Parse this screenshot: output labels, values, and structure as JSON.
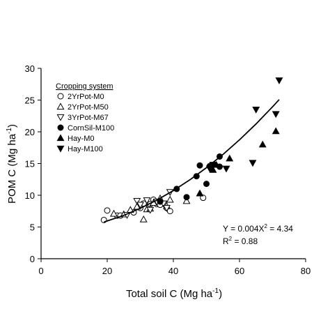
{
  "chart_data": {
    "type": "scatter",
    "title": "",
    "xlabel": "Total soil C (Mg ha",
    "xlabel_sup": "-1",
    "xlabel_close": ")",
    "ylabel": "POM C (Mg ha",
    "ylabel_sup": "-1",
    "ylabel_close": ")",
    "xlim": [
      0,
      80
    ],
    "ylim": [
      0,
      30
    ],
    "xticks": [
      0,
      20,
      40,
      60,
      80
    ],
    "yticks": [
      0,
      5,
      10,
      15,
      20,
      25,
      30
    ],
    "grid": false,
    "legend": {
      "title": "Cropping system",
      "placement": "top-left"
    },
    "series": [
      {
        "name": "2YrPot-M0",
        "marker": "circle-open",
        "points": [
          [
            19,
            6.1
          ],
          [
            20,
            7.6
          ],
          [
            23,
            6.8
          ],
          [
            24,
            6.8
          ],
          [
            28,
            7.3
          ],
          [
            30,
            8.0
          ],
          [
            31,
            8.7
          ],
          [
            33,
            8.6
          ],
          [
            34,
            9.3
          ],
          [
            35,
            8.6
          ],
          [
            36,
            8.5
          ],
          [
            38,
            8.0
          ],
          [
            39,
            7.5
          ],
          [
            49,
            9.6
          ]
        ]
      },
      {
        "name": "2YrPot-M50",
        "marker": "triangle-up-open",
        "points": [
          [
            22,
            7.1
          ],
          [
            25,
            7.0
          ],
          [
            27,
            7.7
          ],
          [
            29,
            8.2
          ],
          [
            31,
            6.2
          ],
          [
            32,
            7.8
          ],
          [
            33,
            7.9
          ],
          [
            34,
            8.8
          ],
          [
            36,
            9.5
          ],
          [
            38,
            8.3
          ],
          [
            39,
            9.3
          ],
          [
            44,
            9.1
          ]
        ]
      },
      {
        "name": "3YrPot-M67",
        "marker": "triangle-down-open",
        "points": [
          [
            26,
            6.9
          ],
          [
            29,
            9.1
          ],
          [
            30,
            8.5
          ],
          [
            32,
            9.2
          ],
          [
            33,
            7.7
          ],
          [
            35,
            9.0
          ],
          [
            37,
            8.7
          ],
          [
            38,
            8.0
          ],
          [
            39,
            10.5
          ]
        ]
      },
      {
        "name": "CornSil-M100",
        "marker": "circle-filled",
        "points": [
          [
            36,
            9.0
          ],
          [
            41,
            11.0
          ],
          [
            44,
            9.7
          ],
          [
            47,
            13.0
          ],
          [
            48,
            14.7
          ],
          [
            50,
            11.8
          ],
          [
            51,
            14.6
          ],
          [
            54,
            16.1
          ],
          [
            54,
            14.5
          ]
        ]
      },
      {
        "name": "Hay-M0",
        "marker": "triangle-up-filled",
        "points": [
          [
            48,
            10.3
          ],
          [
            52,
            14.0
          ],
          [
            53,
            14.8
          ],
          [
            57,
            15.8
          ],
          [
            67,
            18.0
          ],
          [
            71,
            20.1
          ]
        ]
      },
      {
        "name": "Hay-M100",
        "marker": "triangle-down-filled",
        "points": [
          [
            51,
            14.2
          ],
          [
            52,
            14.8
          ],
          [
            56,
            14.2
          ],
          [
            64,
            15.1
          ],
          [
            65,
            23.5
          ],
          [
            71,
            22.8
          ],
          [
            72,
            28.1
          ]
        ]
      }
    ],
    "fit": {
      "x_range": [
        19,
        72
      ],
      "points": [
        [
          19,
          5.78
        ],
        [
          25,
          6.84
        ],
        [
          30,
          7.94
        ],
        [
          35,
          9.24
        ],
        [
          40,
          10.74
        ],
        [
          45,
          12.44
        ],
        [
          50,
          14.34
        ],
        [
          55,
          16.44
        ],
        [
          60,
          18.74
        ],
        [
          65,
          21.24
        ],
        [
          70,
          23.94
        ],
        [
          72,
          25.08
        ]
      ]
    },
    "annotation": {
      "equation": "Y = 0.004X",
      "equation_sup": "2",
      "equation_rest": " = 4.34",
      "r2_prefix": "R",
      "r2_sup": "2",
      "r2_rest": " = 0.88"
    }
  }
}
